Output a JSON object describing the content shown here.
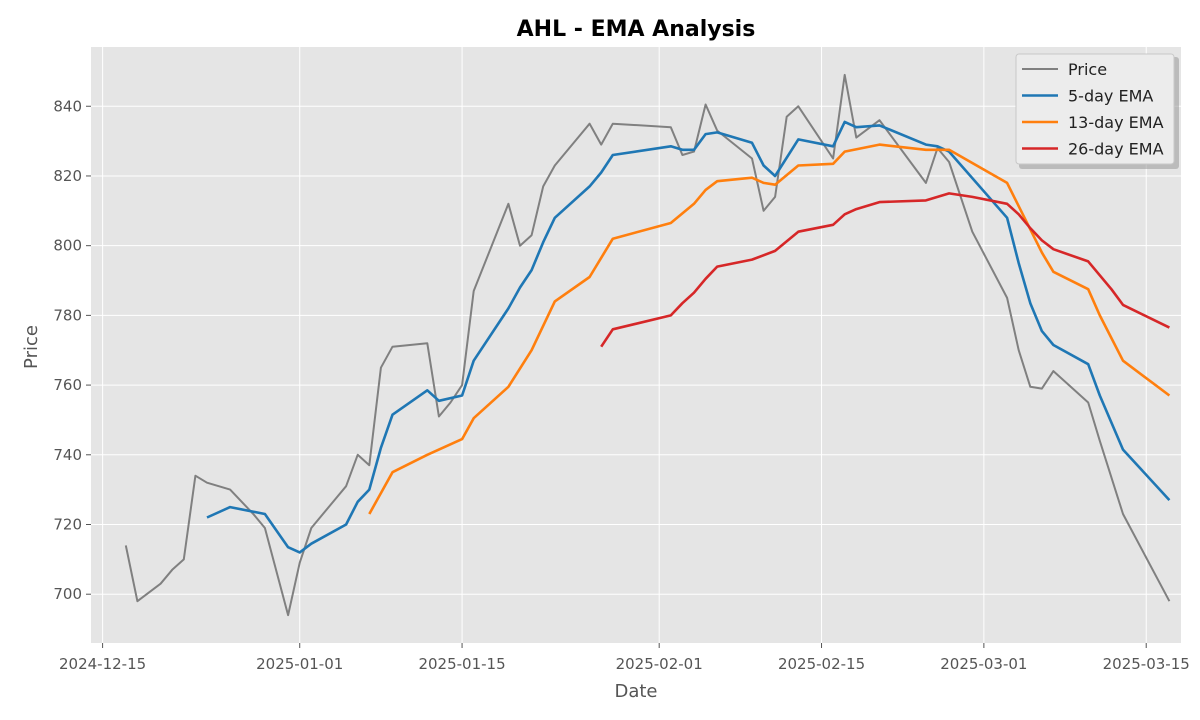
{
  "chart_data": {
    "type": "line",
    "title": "AHL - EMA Analysis",
    "xlabel": "Date",
    "ylabel": "Price",
    "xlim": [
      "2024-12-14",
      "2025-03-18"
    ],
    "ylim": [
      686,
      857
    ],
    "x_ticks": [
      "2024-12-15",
      "2025-01-01",
      "2025-01-15",
      "2025-02-01",
      "2025-02-15",
      "2025-03-01",
      "2025-03-15"
    ],
    "y_ticks": [
      700,
      720,
      740,
      760,
      780,
      800,
      820,
      840
    ],
    "grid": true,
    "legend_position": "top-right",
    "series": [
      {
        "name": "Price",
        "color": "#808080",
        "points": [
          [
            "2024-12-17",
            714
          ],
          [
            "2024-12-18",
            698
          ],
          [
            "2024-12-20",
            703
          ],
          [
            "2024-12-21",
            707
          ],
          [
            "2024-12-22",
            710
          ],
          [
            "2024-12-23",
            734
          ],
          [
            "2024-12-24",
            732
          ],
          [
            "2024-12-26",
            730
          ],
          [
            "2024-12-28",
            723
          ],
          [
            "2024-12-29",
            719
          ],
          [
            "2024-12-31",
            694
          ],
          [
            "2025-01-01",
            709
          ],
          [
            "2025-01-02",
            719
          ],
          [
            "2025-01-04",
            727
          ],
          [
            "2025-01-05",
            731
          ],
          [
            "2025-01-06",
            740
          ],
          [
            "2025-01-07",
            737
          ],
          [
            "2025-01-08",
            765
          ],
          [
            "2025-01-09",
            771
          ],
          [
            "2025-01-12",
            772
          ],
          [
            "2025-01-13",
            751
          ],
          [
            "2025-01-14",
            755
          ],
          [
            "2025-01-15",
            760
          ],
          [
            "2025-01-16",
            787
          ],
          [
            "2025-01-19",
            812
          ],
          [
            "2025-01-20",
            800
          ],
          [
            "2025-01-21",
            803
          ],
          [
            "2025-01-22",
            817
          ],
          [
            "2025-01-23",
            823
          ],
          [
            "2025-01-26",
            835
          ],
          [
            "2025-01-27",
            829
          ],
          [
            "2025-01-28",
            835
          ],
          [
            "2025-02-02",
            834
          ],
          [
            "2025-02-03",
            826
          ],
          [
            "2025-02-04",
            827
          ],
          [
            "2025-02-05",
            840.5
          ],
          [
            "2025-02-06",
            833
          ],
          [
            "2025-02-09",
            825
          ],
          [
            "2025-02-10",
            810
          ],
          [
            "2025-02-11",
            814
          ],
          [
            "2025-02-12",
            837
          ],
          [
            "2025-02-13",
            840
          ],
          [
            "2025-02-16",
            825
          ],
          [
            "2025-02-17",
            849
          ],
          [
            "2025-02-18",
            831
          ],
          [
            "2025-02-20",
            836
          ],
          [
            "2025-02-24",
            818
          ],
          [
            "2025-02-25",
            828
          ],
          [
            "2025-02-26",
            824
          ],
          [
            "2025-02-28",
            804
          ],
          [
            "2025-03-03",
            785
          ],
          [
            "2025-03-04",
            770
          ],
          [
            "2025-03-05",
            759.5
          ],
          [
            "2025-03-06",
            759
          ],
          [
            "2025-03-07",
            764
          ],
          [
            "2025-03-10",
            755
          ],
          [
            "2025-03-11",
            744
          ],
          [
            "2025-03-13",
            723
          ],
          [
            "2025-03-17",
            698
          ]
        ]
      },
      {
        "name": "5-day EMA",
        "color": "#1f77b4",
        "points": [
          [
            "2024-12-24",
            722
          ],
          [
            "2024-12-26",
            725
          ],
          [
            "2024-12-29",
            723
          ],
          [
            "2024-12-31",
            713.5
          ],
          [
            "2025-01-01",
            712
          ],
          [
            "2025-01-02",
            714.5
          ],
          [
            "2025-01-05",
            720
          ],
          [
            "2025-01-06",
            726.5
          ],
          [
            "2025-01-07",
            730
          ],
          [
            "2025-01-08",
            742
          ],
          [
            "2025-01-09",
            751.5
          ],
          [
            "2025-01-12",
            758.5
          ],
          [
            "2025-01-13",
            755.5
          ],
          [
            "2025-01-15",
            757
          ],
          [
            "2025-01-16",
            767
          ],
          [
            "2025-01-19",
            782
          ],
          [
            "2025-01-20",
            788
          ],
          [
            "2025-01-21",
            793
          ],
          [
            "2025-01-22",
            801
          ],
          [
            "2025-01-23",
            808
          ],
          [
            "2025-01-26",
            817
          ],
          [
            "2025-01-27",
            821
          ],
          [
            "2025-01-28",
            826
          ],
          [
            "2025-02-02",
            828.5
          ],
          [
            "2025-02-03",
            827.5
          ],
          [
            "2025-02-04",
            827.5
          ],
          [
            "2025-02-05",
            832
          ],
          [
            "2025-02-06",
            832.5
          ],
          [
            "2025-02-09",
            829.5
          ],
          [
            "2025-02-10",
            823
          ],
          [
            "2025-02-11",
            820
          ],
          [
            "2025-02-13",
            830.5
          ],
          [
            "2025-02-16",
            828.5
          ],
          [
            "2025-02-17",
            835.5
          ],
          [
            "2025-02-18",
            834
          ],
          [
            "2025-02-20",
            834.5
          ],
          [
            "2025-02-24",
            829
          ],
          [
            "2025-02-25",
            828.5
          ],
          [
            "2025-02-26",
            827
          ],
          [
            "2025-03-03",
            808
          ],
          [
            "2025-03-04",
            795
          ],
          [
            "2025-03-05",
            783.5
          ],
          [
            "2025-03-06",
            775.5
          ],
          [
            "2025-03-07",
            771.5
          ],
          [
            "2025-03-10",
            766
          ],
          [
            "2025-03-11",
            757
          ],
          [
            "2025-03-13",
            741.5
          ],
          [
            "2025-03-17",
            727
          ]
        ]
      },
      {
        "name": "13-day EMA",
        "color": "#ff7f0e",
        "points": [
          [
            "2025-01-07",
            723
          ],
          [
            "2025-01-09",
            735
          ],
          [
            "2025-01-12",
            740
          ],
          [
            "2025-01-13",
            741.5
          ],
          [
            "2025-01-15",
            744.5
          ],
          [
            "2025-01-16",
            750.5
          ],
          [
            "2025-01-19",
            759.5
          ],
          [
            "2025-01-21",
            770
          ],
          [
            "2025-01-23",
            784
          ],
          [
            "2025-01-26",
            791
          ],
          [
            "2025-01-28",
            802
          ],
          [
            "2025-02-02",
            806.5
          ],
          [
            "2025-02-04",
            812
          ],
          [
            "2025-02-05",
            816
          ],
          [
            "2025-02-06",
            818.5
          ],
          [
            "2025-02-09",
            819.5
          ],
          [
            "2025-02-10",
            818
          ],
          [
            "2025-02-11",
            817.5
          ],
          [
            "2025-02-13",
            823
          ],
          [
            "2025-02-16",
            823.5
          ],
          [
            "2025-02-17",
            827
          ],
          [
            "2025-02-20",
            829
          ],
          [
            "2025-02-24",
            827.5
          ],
          [
            "2025-02-26",
            827.5
          ],
          [
            "2025-03-03",
            818
          ],
          [
            "2025-03-06",
            798
          ],
          [
            "2025-03-07",
            792.5
          ],
          [
            "2025-03-10",
            787.5
          ],
          [
            "2025-03-11",
            780
          ],
          [
            "2025-03-13",
            767
          ],
          [
            "2025-03-17",
            757
          ]
        ]
      },
      {
        "name": "26-day EMA",
        "color": "#d62728",
        "points": [
          [
            "2025-01-27",
            771
          ],
          [
            "2025-01-28",
            776
          ],
          [
            "2025-02-02",
            780
          ],
          [
            "2025-02-03",
            783.5
          ],
          [
            "2025-02-04",
            786.5
          ],
          [
            "2025-02-05",
            790.5
          ],
          [
            "2025-02-06",
            794
          ],
          [
            "2025-02-09",
            796
          ],
          [
            "2025-02-11",
            798.5
          ],
          [
            "2025-02-13",
            804
          ],
          [
            "2025-02-16",
            806
          ],
          [
            "2025-02-17",
            809
          ],
          [
            "2025-02-18",
            810.5
          ],
          [
            "2025-02-20",
            812.5
          ],
          [
            "2025-02-24",
            813
          ],
          [
            "2025-02-25",
            814
          ],
          [
            "2025-02-26",
            815
          ],
          [
            "2025-02-28",
            814
          ],
          [
            "2025-03-03",
            812
          ],
          [
            "2025-03-04",
            809
          ],
          [
            "2025-03-05",
            805
          ],
          [
            "2025-03-06",
            801.5
          ],
          [
            "2025-03-07",
            799
          ],
          [
            "2025-03-10",
            795.5
          ],
          [
            "2025-03-11",
            791.5
          ],
          [
            "2025-03-12",
            787.5
          ],
          [
            "2025-03-13",
            783
          ],
          [
            "2025-03-17",
            776.5
          ]
        ]
      }
    ]
  }
}
